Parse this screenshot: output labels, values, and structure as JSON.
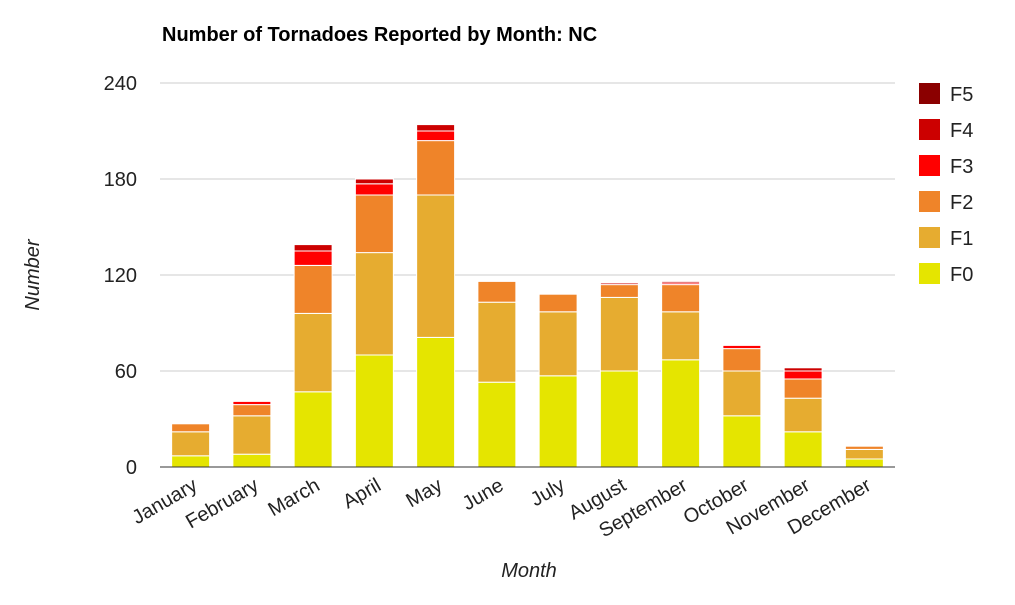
{
  "chart_data": {
    "type": "bar",
    "stacked": true,
    "title": "Number of Tornadoes Reported by Month: NC",
    "xlabel": "Month",
    "ylabel": "Number",
    "ylim": [
      0,
      240
    ],
    "yticks": [
      "0",
      "60",
      "120",
      "180",
      "240"
    ],
    "grid": true,
    "legend_position": "right",
    "categories": [
      "January",
      "February",
      "March",
      "April",
      "May",
      "June",
      "July",
      "August",
      "September",
      "October",
      "November",
      "December"
    ],
    "series": [
      {
        "name": "F0",
        "color": "#e5e500",
        "values": [
          7,
          8,
          47,
          70,
          81,
          53,
          57,
          60,
          67,
          32,
          22,
          5
        ]
      },
      {
        "name": "F1",
        "color": "#e6ac30",
        "values": [
          15,
          24,
          49,
          64,
          89,
          50,
          40,
          46,
          30,
          28,
          21,
          6
        ]
      },
      {
        "name": "F2",
        "color": "#ef8429",
        "values": [
          5,
          7,
          30,
          36,
          34,
          13,
          11,
          8,
          17,
          14,
          12,
          2
        ]
      },
      {
        "name": "F3",
        "color": "#ff0000",
        "values": [
          0,
          2,
          9,
          7,
          6,
          0,
          0,
          0,
          1,
          2,
          5,
          0
        ]
      },
      {
        "name": "F4",
        "color": "#cc0000",
        "values": [
          0,
          0,
          4,
          3,
          4,
          0,
          0,
          1,
          1,
          0,
          2,
          0
        ]
      },
      {
        "name": "F5",
        "color": "#8b0000",
        "values": [
          0,
          0,
          0,
          0,
          0,
          0,
          0,
          0,
          0,
          0,
          0,
          0
        ]
      }
    ]
  }
}
